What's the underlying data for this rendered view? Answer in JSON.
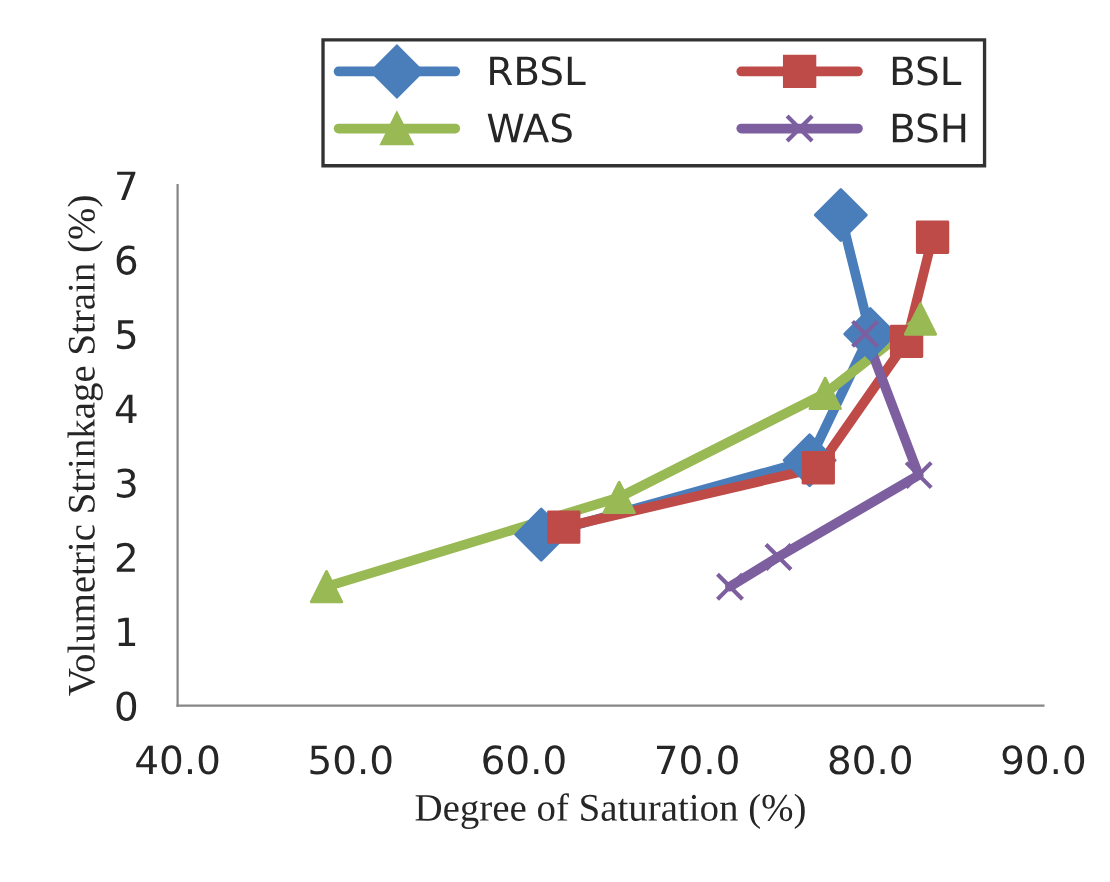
{
  "chart_data": {
    "type": "line",
    "xlabel": "Degree of Saturation (%)",
    "ylabel": "Volumetric Strinkage Strain (%)",
    "xlim": [
      40,
      90
    ],
    "xticks": [
      {
        "value": 40,
        "label": "40.0"
      },
      {
        "value": 50,
        "label": "50.0"
      },
      {
        "value": 60,
        "label": "60.0"
      },
      {
        "value": 70,
        "label": "70.0"
      },
      {
        "value": 80,
        "label": "80.0"
      },
      {
        "value": 90,
        "label": "90.0"
      }
    ],
    "ylim": [
      0,
      7
    ],
    "yticks": [
      0,
      1,
      2,
      3,
      4,
      5,
      6,
      7
    ],
    "grid": false,
    "legend": "top",
    "series": [
      {
        "name": "RBSL",
        "color": "#4a7ebb",
        "marker": "diamond",
        "x": [
          78.3,
          80.0,
          76.5,
          61.0
        ],
        "values": [
          6.6,
          5.0,
          3.3,
          2.3
        ]
      },
      {
        "name": "BSL",
        "color": "#be4b48",
        "marker": "square",
        "x": [
          83.6,
          82.1,
          77.0,
          62.3
        ],
        "values": [
          6.3,
          4.9,
          3.2,
          2.4
        ]
      },
      {
        "name": "WAS",
        "color": "#98b954",
        "marker": "triangle",
        "x": [
          82.9,
          77.4,
          65.5,
          48.6
        ],
        "values": [
          5.2,
          4.2,
          2.8,
          1.6
        ]
      },
      {
        "name": "BSH",
        "color": "#7d5fa0",
        "marker": "cross",
        "x": [
          79.7,
          82.8,
          74.7,
          71.9
        ],
        "values": [
          5.0,
          3.1,
          2.0,
          1.6
        ]
      }
    ]
  }
}
